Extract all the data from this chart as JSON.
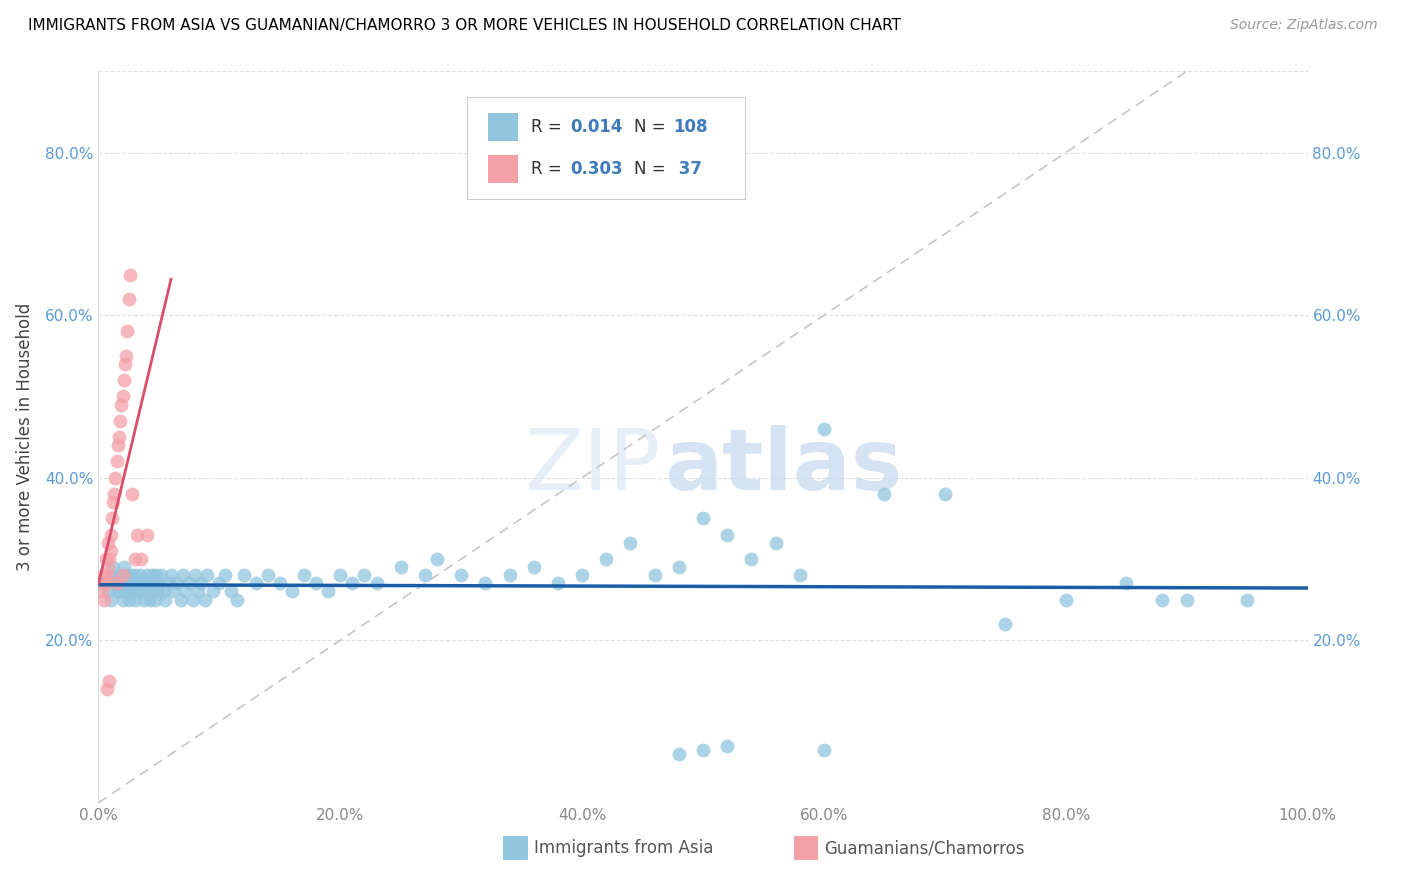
{
  "title": "IMMIGRANTS FROM ASIA VS GUAMANIAN/CHAMORRO 3 OR MORE VEHICLES IN HOUSEHOLD CORRELATION CHART",
  "source": "Source: ZipAtlas.com",
  "ylabel": "3 or more Vehicles in Household",
  "xlim": [
    0.0,
    1.0
  ],
  "ylim": [
    0.0,
    0.9
  ],
  "x_ticks": [
    0.0,
    0.2,
    0.4,
    0.6,
    0.8,
    1.0
  ],
  "x_tick_labels": [
    "0.0%",
    "20.0%",
    "40.0%",
    "60.0%",
    "80.0%",
    "100.0%"
  ],
  "y_ticks": [
    0.2,
    0.4,
    0.6,
    0.8
  ],
  "y_tick_labels": [
    "20.0%",
    "40.0%",
    "60.0%",
    "80.0%"
  ],
  "blue_color": "#92c5de",
  "pink_color": "#f4a0a8",
  "blue_line_color": "#1a5da6",
  "pink_line_color": "#d94f6a",
  "diagonal_color": "#c0c0c0",
  "r_blue": 0.014,
  "n_blue": 108,
  "r_pink": 0.303,
  "n_pink": 37,
  "legend_label_blue": "Immigrants from Asia",
  "legend_label_pink": "Guamanians/Chamorros",
  "blue_scatter_x": [
    0.005,
    0.008,
    0.01,
    0.01,
    0.012,
    0.013,
    0.015,
    0.015,
    0.016,
    0.018,
    0.018,
    0.02,
    0.02,
    0.021,
    0.022,
    0.023,
    0.024,
    0.025,
    0.025,
    0.026,
    0.027,
    0.028,
    0.028,
    0.03,
    0.03,
    0.032,
    0.033,
    0.034,
    0.035,
    0.036,
    0.038,
    0.039,
    0.04,
    0.041,
    0.042,
    0.043,
    0.044,
    0.045,
    0.046,
    0.047,
    0.048,
    0.049,
    0.05,
    0.052,
    0.054,
    0.055,
    0.058,
    0.06,
    0.062,
    0.065,
    0.068,
    0.07,
    0.072,
    0.075,
    0.078,
    0.08,
    0.082,
    0.085,
    0.088,
    0.09,
    0.095,
    0.1,
    0.105,
    0.11,
    0.115,
    0.12,
    0.13,
    0.14,
    0.15,
    0.16,
    0.17,
    0.18,
    0.19,
    0.2,
    0.21,
    0.22,
    0.23,
    0.25,
    0.27,
    0.28,
    0.3,
    0.32,
    0.34,
    0.36,
    0.38,
    0.4,
    0.42,
    0.44,
    0.46,
    0.48,
    0.5,
    0.52,
    0.54,
    0.56,
    0.58,
    0.6,
    0.65,
    0.7,
    0.75,
    0.8,
    0.85,
    0.88,
    0.9,
    0.95,
    0.48,
    0.5,
    0.52,
    0.6
  ],
  "blue_scatter_y": [
    0.27,
    0.26,
    0.28,
    0.25,
    0.29,
    0.27,
    0.26,
    0.28,
    0.27,
    0.26,
    0.28,
    0.27,
    0.25,
    0.29,
    0.27,
    0.26,
    0.28,
    0.27,
    0.25,
    0.26,
    0.28,
    0.27,
    0.26,
    0.28,
    0.25,
    0.27,
    0.26,
    0.28,
    0.27,
    0.26,
    0.25,
    0.27,
    0.28,
    0.26,
    0.27,
    0.25,
    0.28,
    0.26,
    0.27,
    0.25,
    0.28,
    0.26,
    0.27,
    0.28,
    0.26,
    0.25,
    0.27,
    0.28,
    0.26,
    0.27,
    0.25,
    0.28,
    0.26,
    0.27,
    0.25,
    0.28,
    0.26,
    0.27,
    0.25,
    0.28,
    0.26,
    0.27,
    0.28,
    0.26,
    0.25,
    0.28,
    0.27,
    0.28,
    0.27,
    0.26,
    0.28,
    0.27,
    0.26,
    0.28,
    0.27,
    0.28,
    0.27,
    0.29,
    0.28,
    0.3,
    0.28,
    0.27,
    0.28,
    0.29,
    0.27,
    0.28,
    0.3,
    0.32,
    0.28,
    0.29,
    0.35,
    0.33,
    0.3,
    0.32,
    0.28,
    0.46,
    0.38,
    0.38,
    0.22,
    0.25,
    0.27,
    0.25,
    0.25,
    0.25,
    0.06,
    0.065,
    0.07,
    0.065
  ],
  "pink_scatter_x": [
    0.003,
    0.004,
    0.005,
    0.005,
    0.006,
    0.006,
    0.007,
    0.008,
    0.008,
    0.009,
    0.01,
    0.01,
    0.011,
    0.012,
    0.013,
    0.014,
    0.015,
    0.015,
    0.016,
    0.017,
    0.018,
    0.019,
    0.02,
    0.02,
    0.021,
    0.022,
    0.023,
    0.024,
    0.025,
    0.026,
    0.028,
    0.03,
    0.032,
    0.035,
    0.04,
    0.007,
    0.009
  ],
  "pink_scatter_y": [
    0.26,
    0.27,
    0.28,
    0.25,
    0.27,
    0.3,
    0.28,
    0.29,
    0.32,
    0.3,
    0.31,
    0.33,
    0.35,
    0.37,
    0.38,
    0.4,
    0.42,
    0.27,
    0.44,
    0.45,
    0.47,
    0.49,
    0.5,
    0.28,
    0.52,
    0.54,
    0.55,
    0.58,
    0.62,
    0.65,
    0.38,
    0.3,
    0.33,
    0.3,
    0.33,
    0.14,
    0.15
  ]
}
